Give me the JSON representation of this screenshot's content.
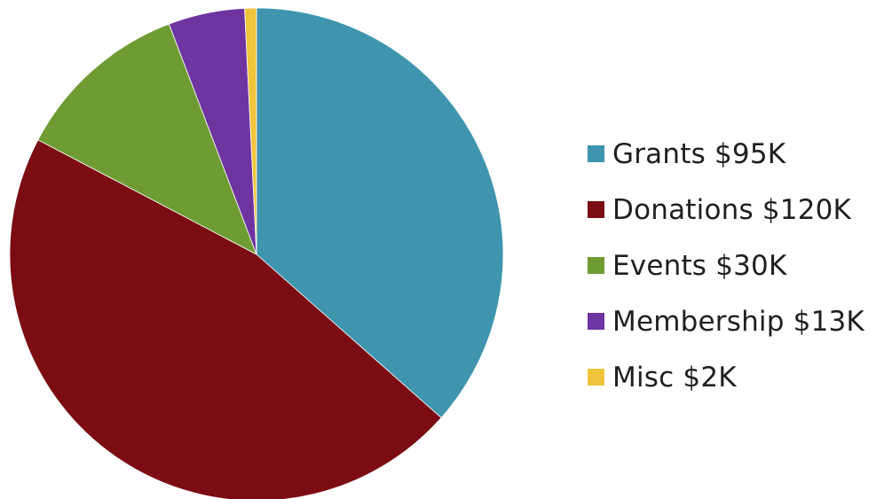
{
  "chart_data": {
    "type": "pie",
    "title": "",
    "slices": [
      {
        "label": "Grants $95K",
        "name": "Grants",
        "value": 95,
        "color": "#3f95ad"
      },
      {
        "label": "Donations $120K",
        "name": "Donations",
        "value": 120,
        "color": "#7b0c14"
      },
      {
        "label": "Events $30K",
        "name": "Events",
        "value": 30,
        "color": "#6e9c33"
      },
      {
        "label": "Membership $13K",
        "name": "Membership",
        "value": 13,
        "color": "#6e34a0"
      },
      {
        "label": "Misc $2K",
        "name": "Misc",
        "value": 2,
        "color": "#f0c53c"
      }
    ],
    "unit": "$K",
    "start": "12 o'clock",
    "direction": "clockwise",
    "legend_position": "right"
  }
}
